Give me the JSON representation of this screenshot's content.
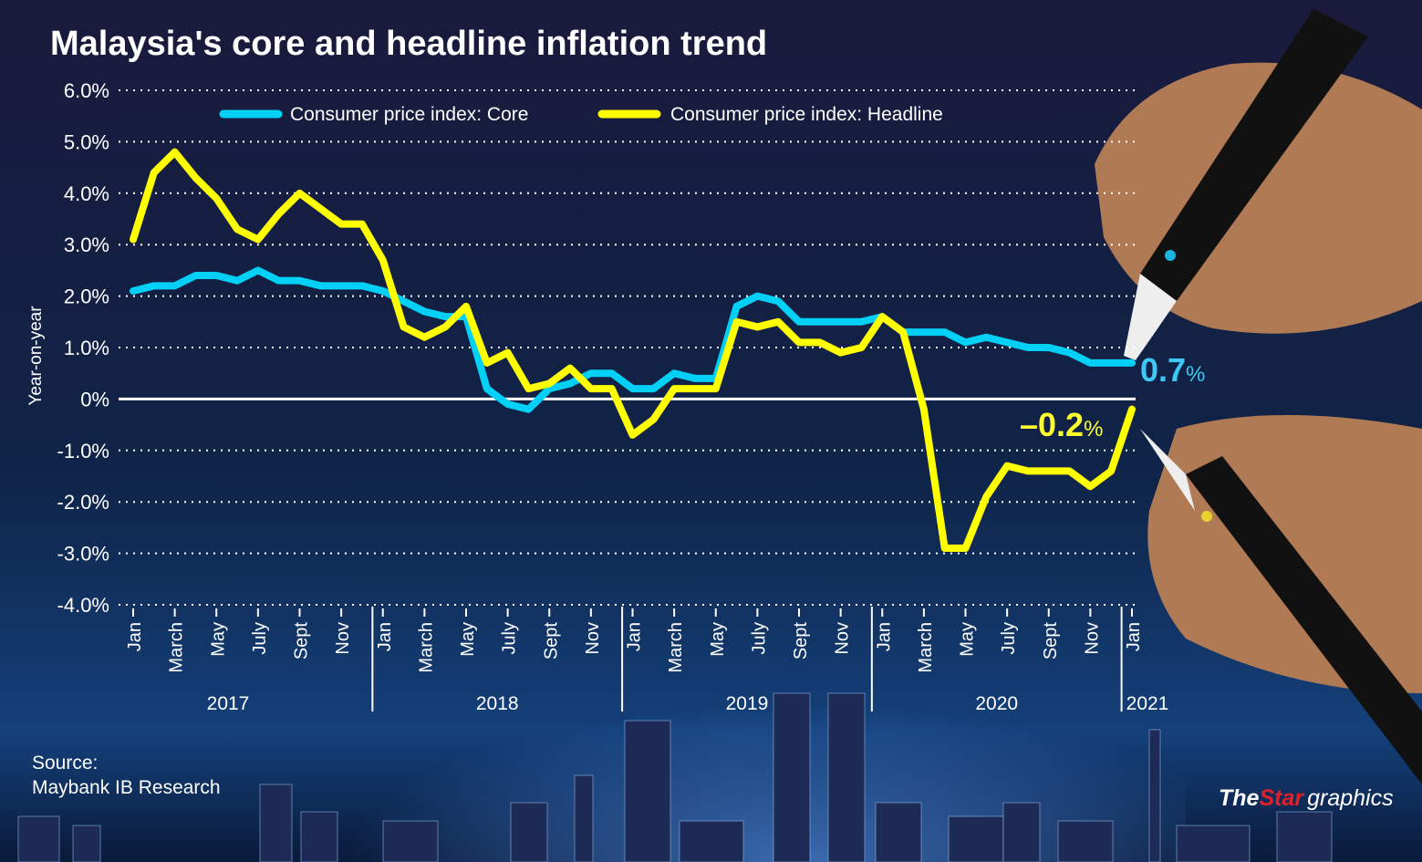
{
  "chart_data": {
    "type": "line",
    "title": "Malaysia's core and headline inflation trend",
    "ylabel": "Year-on-year",
    "ylim": [
      -4,
      6
    ],
    "yticks": [
      "6.0%",
      "5.0%",
      "4.0%",
      "3.0%",
      "2.0%",
      "1.0%",
      "0%",
      "-1.0%",
      "-2.0%",
      "-3.0%",
      "-4.0%"
    ],
    "ytick_values": [
      6,
      5,
      4,
      3,
      2,
      1,
      0,
      -1,
      -2,
      -3,
      -4
    ],
    "grid": "horizontal dotted",
    "legend_position": "top",
    "x_start": "2017-01",
    "x_end": "2021-01",
    "month_tick_labels": [
      "Jan",
      "March",
      "May",
      "July",
      "Sept",
      "Nov"
    ],
    "year_labels": [
      "2017",
      "2018",
      "2019",
      "2020",
      "2021"
    ],
    "series": [
      {
        "name": "Consumer price index: Core",
        "color": "#00d0f5",
        "values": [
          2.1,
          2.2,
          2.2,
          2.4,
          2.4,
          2.3,
          2.5,
          2.3,
          2.3,
          2.2,
          2.2,
          2.2,
          2.1,
          1.9,
          1.7,
          1.6,
          1.6,
          0.2,
          -0.1,
          -0.2,
          0.2,
          0.3,
          0.5,
          0.5,
          0.2,
          0.2,
          0.5,
          0.4,
          0.4,
          1.8,
          2.0,
          1.9,
          1.5,
          1.5,
          1.5,
          1.5,
          1.6,
          1.3,
          1.3,
          1.3,
          1.1,
          1.2,
          1.1,
          1.0,
          1.0,
          0.9,
          0.7,
          0.7,
          0.7
        ]
      },
      {
        "name": "Consumer price index: Headline",
        "color": "#ffff00",
        "values": [
          3.1,
          4.4,
          4.8,
          4.3,
          3.9,
          3.3,
          3.1,
          3.6,
          4.0,
          3.7,
          3.4,
          3.4,
          2.7,
          1.4,
          1.2,
          1.4,
          1.8,
          0.7,
          0.9,
          0.2,
          0.3,
          0.6,
          0.2,
          0.2,
          -0.7,
          -0.4,
          0.2,
          0.2,
          0.2,
          1.5,
          1.4,
          1.5,
          1.1,
          1.1,
          0.9,
          1.0,
          1.6,
          1.3,
          -0.2,
          -2.9,
          -2.9,
          -1.9,
          -1.3,
          -1.4,
          -1.4,
          -1.4,
          -1.7,
          -1.4,
          -0.2
        ]
      }
    ],
    "annotations": {
      "core_last": {
        "value": "0.7",
        "unit": "%"
      },
      "headline_last": {
        "value": "–0.2",
        "unit": "%"
      }
    }
  },
  "source": {
    "label": "Source:",
    "text": "Maybank IB Research"
  },
  "branding": {
    "the": "The",
    "star": "Star",
    "graphics": "graphics"
  }
}
